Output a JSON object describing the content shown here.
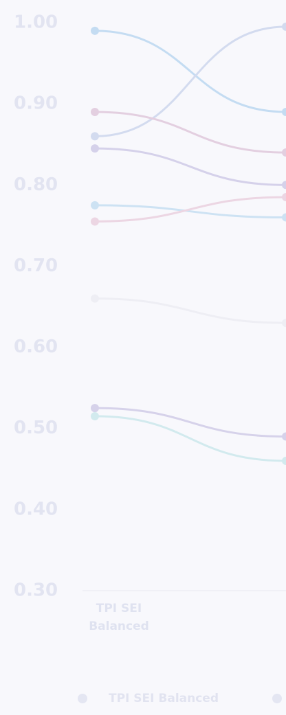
{
  "chart_data": {
    "type": "line",
    "categories": [
      "TPI SEI Balanced",
      null
    ],
    "series": [
      {
        "color": "#c4dcf2",
        "values": [
          0.99,
          0.89
        ]
      },
      {
        "color": "#d3dbef",
        "values": [
          0.86,
          0.995
        ]
      },
      {
        "color": "#e3cfe0",
        "values": [
          0.89,
          0.84
        ]
      },
      {
        "color": "#d5d1ea",
        "values": [
          0.845,
          0.8
        ]
      },
      {
        "color": "#cde2f3",
        "values": [
          0.775,
          0.76
        ]
      },
      {
        "color": "#ecd6e3",
        "values": [
          0.755,
          0.785
        ]
      },
      {
        "color": "#eeeef4",
        "values": [
          0.66,
          0.63
        ]
      },
      {
        "color": "#d6d2ea",
        "values": [
          0.525,
          0.49
        ]
      },
      {
        "color": "#d2eaee",
        "values": [
          0.515,
          0.46
        ]
      }
    ],
    "ylim": [
      0.3,
      1.0
    ],
    "yticks": [
      {
        "value": 0.3,
        "label": "0.30"
      },
      {
        "value": 0.4,
        "label": "0.40"
      },
      {
        "value": 0.5,
        "label": "0.50"
      },
      {
        "value": 0.6,
        "label": "0.60"
      },
      {
        "value": 0.7,
        "label": "0.70"
      },
      {
        "value": 0.8,
        "label": "0.80"
      },
      {
        "value": 0.9,
        "label": "0.90"
      },
      {
        "value": 1.0,
        "label": "1.00"
      }
    ],
    "legend": [
      {
        "label": "TPI SEI Balanced",
        "color": "#e4e6f2"
      }
    ]
  }
}
